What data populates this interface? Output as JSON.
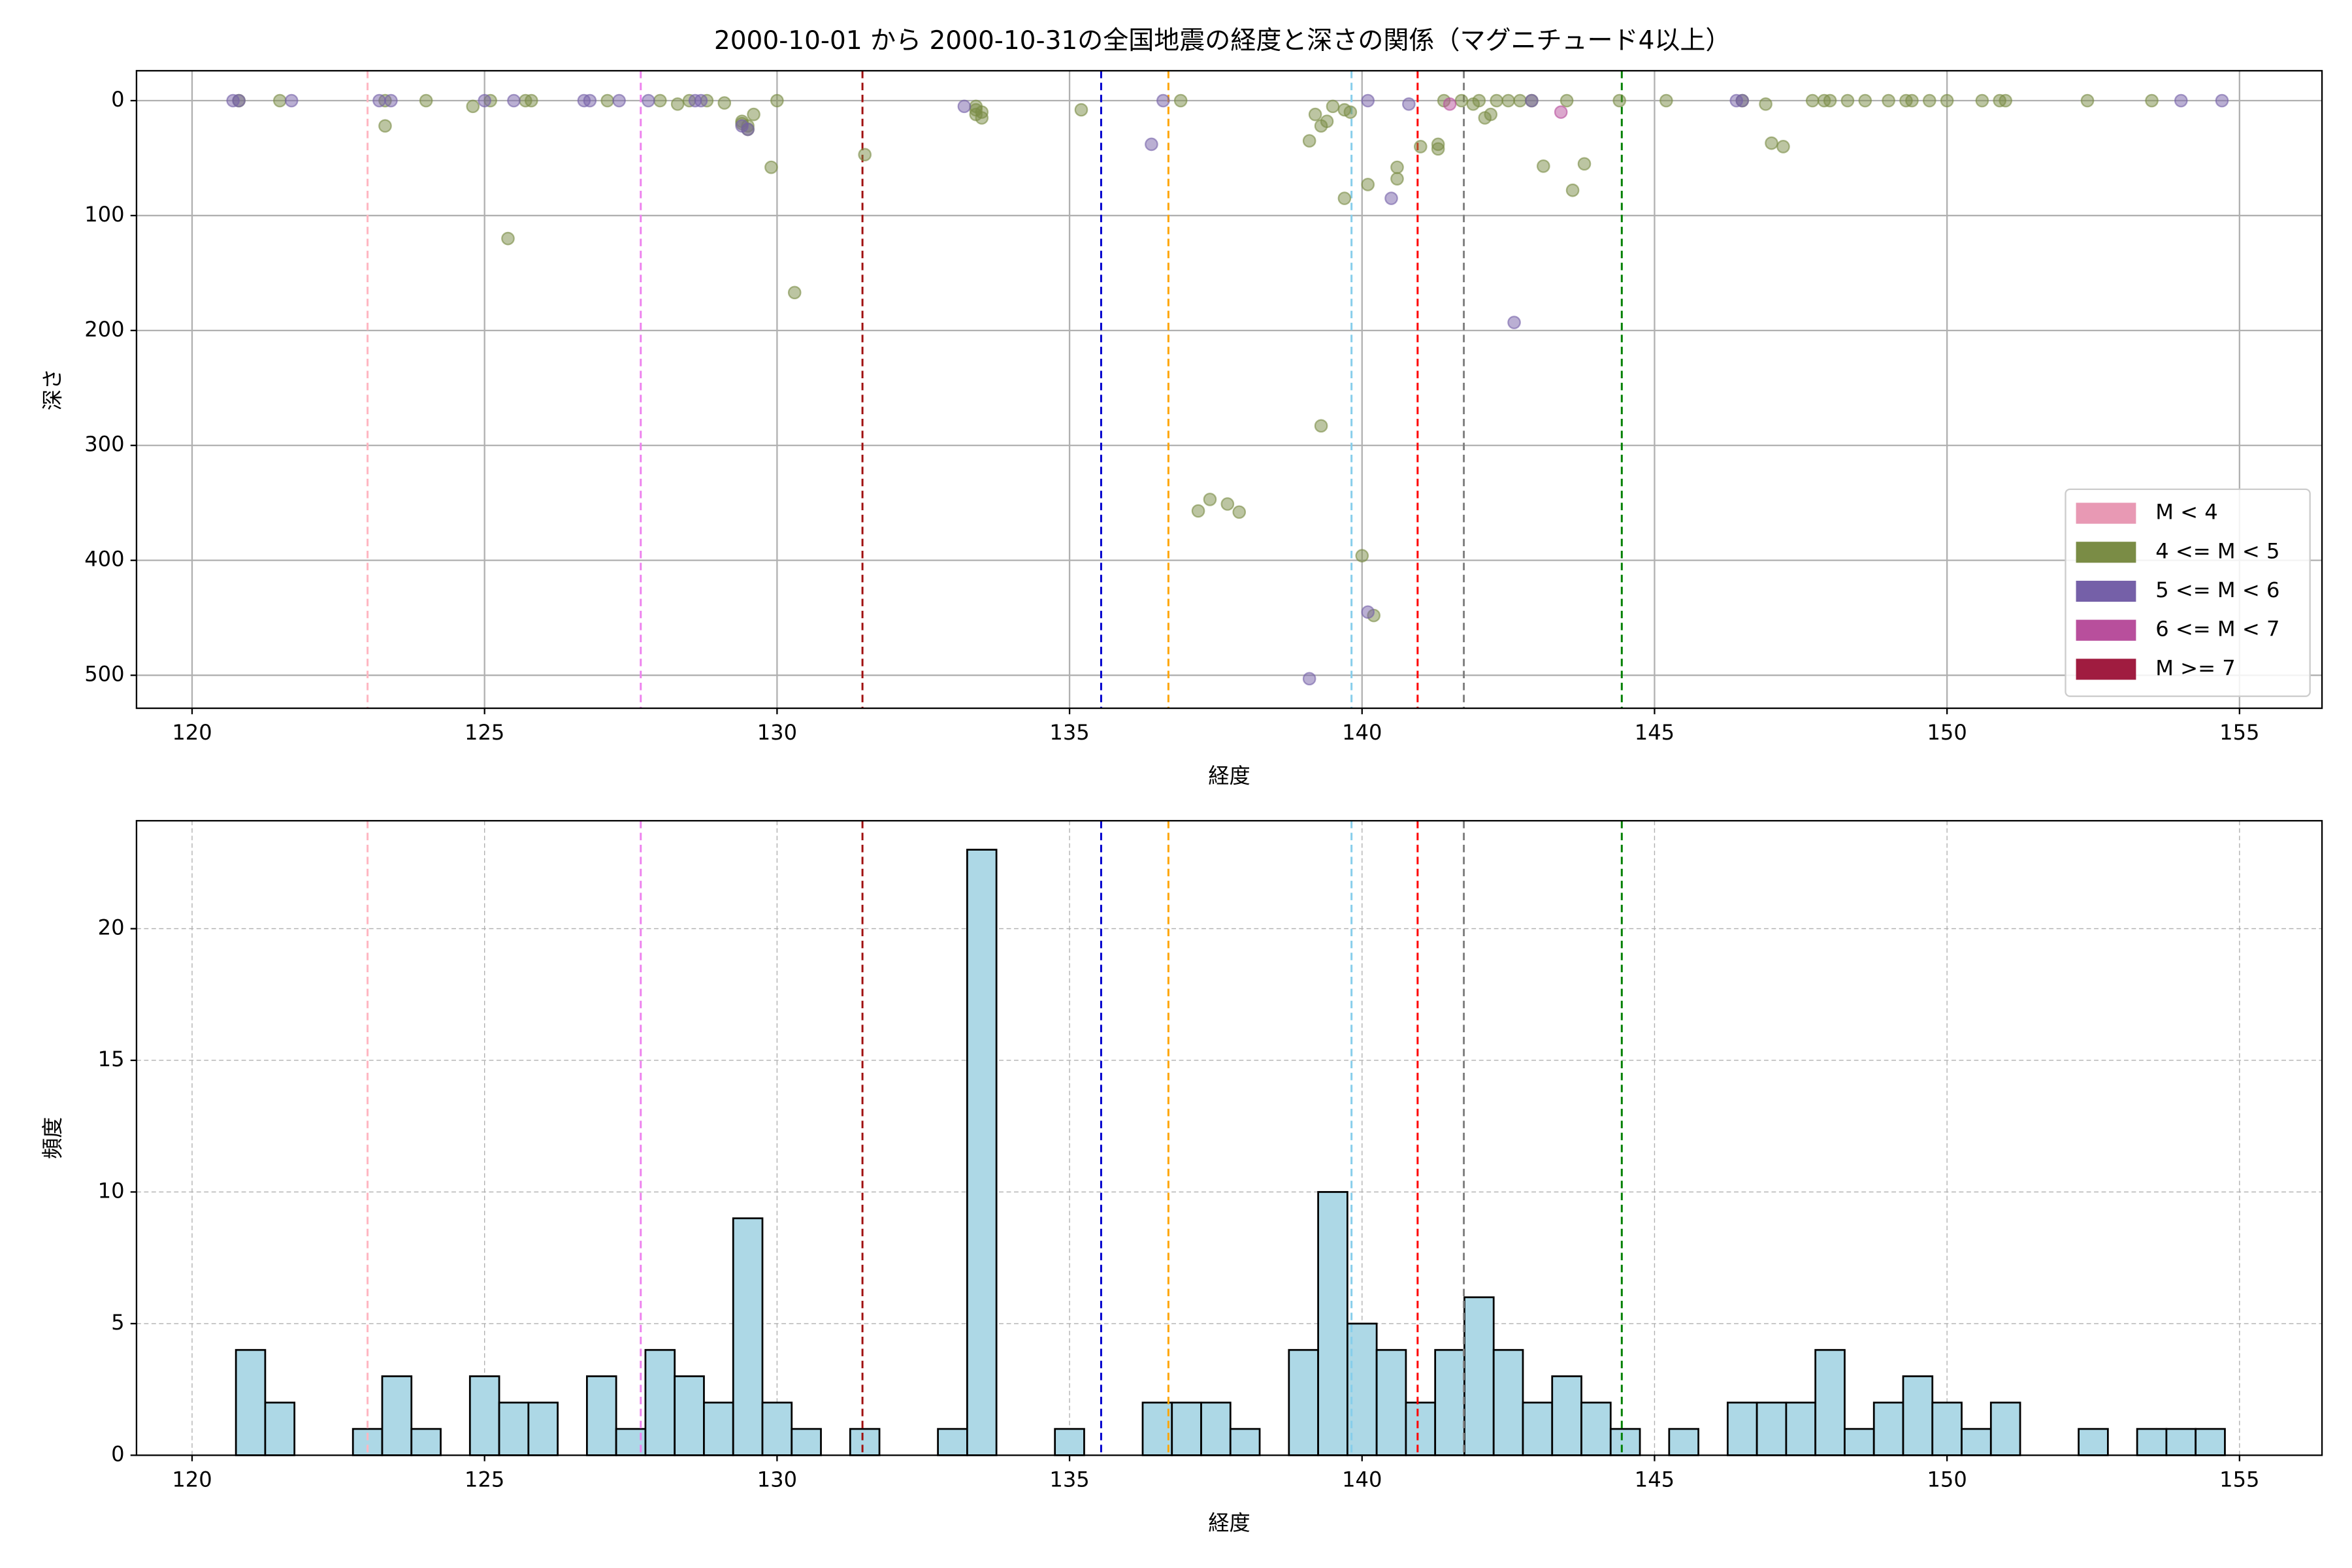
{
  "chart_data": [
    {
      "type": "scatter",
      "title": "2000-10-01 から 2000-10-31の全国地震の経度と深さの関係（マグニチュード4以上）",
      "xlabel": "経度",
      "ylabel": "深さ",
      "xlim": [
        119.05,
        156.41
      ],
      "ylim": [
        528.7,
        -26
      ],
      "xticks": [
        120,
        125,
        130,
        135,
        140,
        145,
        150,
        155
      ],
      "yticks": [
        0,
        100,
        200,
        300,
        400,
        500
      ],
      "grid": true,
      "legend": "lower right",
      "series": [
        {
          "name": "M < 4",
          "color": "#e899b4",
          "x": [],
          "y": []
        },
        {
          "name": "4 <= M < 5",
          "color": "#7a8c45",
          "x": [
            120.8,
            121.5,
            123.3,
            123.3,
            124.0,
            124.8,
            125.1,
            125.4,
            125.7,
            125.8,
            127.1,
            128.0,
            128.3,
            128.5,
            128.8,
            129.1,
            129.4,
            129.4,
            129.5,
            129.5,
            129.6,
            129.9,
            130.0,
            130.3,
            131.5,
            133.4,
            133.4,
            133.5,
            133.4,
            133.5,
            135.2,
            136.9,
            137.2,
            137.4,
            137.7,
            137.9,
            139.1,
            139.2,
            139.3,
            139.3,
            139.4,
            139.5,
            139.7,
            139.8,
            139.7,
            140.0,
            140.1,
            140.2,
            140.6,
            140.6,
            141.0,
            141.3,
            141.3,
            141.4,
            141.7,
            141.9,
            142.0,
            142.1,
            142.2,
            142.3,
            142.5,
            142.7,
            142.9,
            143.1,
            143.5,
            143.6,
            143.8,
            144.4,
            145.2,
            146.5,
            146.9,
            147.0,
            147.2,
            147.7,
            147.9,
            148.0,
            148.3,
            148.6,
            149.0,
            149.3,
            149.4,
            149.7,
            150.0,
            150.6,
            150.9,
            151.0,
            152.4,
            153.5
          ],
          "y": [
            0,
            0,
            0,
            22,
            0,
            5,
            0,
            120,
            0,
            0,
            0,
            0,
            3,
            0,
            0,
            2,
            18,
            20,
            25,
            22,
            12,
            58,
            0,
            167,
            47,
            8,
            12,
            15,
            5,
            10,
            8,
            0,
            357,
            347,
            351,
            358,
            35,
            12,
            283,
            22,
            18,
            5,
            8,
            10,
            85,
            396,
            73,
            448,
            68,
            58,
            40,
            42,
            38,
            0,
            0,
            3,
            0,
            15,
            12,
            0,
            0,
            0,
            0,
            57,
            0,
            78,
            55,
            0,
            0,
            0,
            3,
            37,
            40,
            0,
            0,
            0,
            0,
            0,
            0,
            0,
            0,
            0,
            0,
            0,
            0,
            0,
            0,
            0
          ]
        },
        {
          "name": "5 <= M < 6",
          "color": "#7560a8",
          "x": [
            120.7,
            120.8,
            121.7,
            123.2,
            123.4,
            125.0,
            125.5,
            126.7,
            126.8,
            127.3,
            127.8,
            128.6,
            128.7,
            129.4,
            129.5,
            133.2,
            136.4,
            136.6,
            139.1,
            140.1,
            140.1,
            140.5,
            140.8,
            142.6,
            142.9,
            146.4,
            146.5,
            154.0,
            154.7
          ],
          "y": [
            0,
            0,
            0,
            0,
            0,
            0,
            0,
            0,
            0,
            0,
            0,
            0,
            0,
            22,
            25,
            5,
            38,
            0,
            503,
            0,
            445,
            85,
            3,
            193,
            0,
            0,
            0,
            0,
            0
          ]
        },
        {
          "name": "6 <= M < 7",
          "color": "#b84f9c",
          "x": [
            141.5,
            143.4
          ],
          "y": [
            3,
            10
          ]
        },
        {
          "name": "M >= 7",
          "color": "#a01c40",
          "x": [],
          "y": []
        }
      ],
      "reference_lines": [
        {
          "x": 123.0,
          "color": "#ffb6c1"
        },
        {
          "x": 127.67,
          "color": "#ee82ee"
        },
        {
          "x": 131.46,
          "color": "#a01010"
        },
        {
          "x": 135.54,
          "color": "#0000cd"
        },
        {
          "x": 136.69,
          "color": "#ffa500"
        },
        {
          "x": 139.82,
          "color": "#87ceeb"
        },
        {
          "x": 140.95,
          "color": "#ff0000"
        },
        {
          "x": 141.74,
          "color": "#808080"
        },
        {
          "x": 144.44,
          "color": "#008000"
        }
      ]
    },
    {
      "type": "histogram",
      "xlabel": "経度",
      "ylabel": "頻度",
      "xlim": [
        119.05,
        156.41
      ],
      "ylim": [
        0,
        24.1
      ],
      "xticks": [
        120,
        125,
        130,
        135,
        140,
        145,
        150,
        155
      ],
      "yticks": [
        0,
        5,
        10,
        15,
        20
      ],
      "grid": true,
      "color": "#add8e6",
      "bins": [
        120.75,
        121.25,
        121.75,
        122.25,
        122.75,
        123.25,
        123.75,
        124.25,
        124.75,
        125.25,
        125.75,
        126.25,
        126.75,
        127.25,
        127.75,
        128.25,
        128.75,
        129.25,
        129.75,
        130.25,
        130.75,
        131.25,
        131.75,
        132.25,
        132.75,
        133.25,
        133.75,
        134.25,
        134.75,
        135.25,
        135.75,
        136.25,
        136.75,
        137.25,
        137.75,
        138.25,
        138.75,
        139.25,
        139.75,
        140.25,
        140.75,
        141.25,
        141.75,
        142.25,
        142.75,
        143.25,
        143.75,
        144.25,
        144.75,
        145.25,
        145.75,
        146.25,
        146.75,
        147.25,
        147.75,
        148.25,
        148.75,
        149.25,
        149.75,
        150.25,
        150.75,
        151.25,
        151.75,
        152.25,
        152.75,
        153.25,
        153.75,
        154.25,
        154.75
      ],
      "counts": [
        4,
        2,
        0,
        0,
        1,
        3,
        1,
        0,
        3,
        2,
        2,
        0,
        3,
        1,
        4,
        3,
        2,
        9,
        2,
        1,
        0,
        1,
        0,
        0,
        1,
        23,
        0,
        0,
        1,
        0,
        0,
        2,
        2,
        2,
        1,
        0,
        4,
        10,
        5,
        4,
        2,
        4,
        6,
        4,
        2,
        3,
        2,
        1,
        0,
        1,
        0,
        2,
        2,
        2,
        4,
        1,
        2,
        3,
        2,
        1,
        2,
        0,
        0,
        1,
        0,
        1,
        1,
        1
      ],
      "reference_lines": [
        {
          "x": 123.0,
          "color": "#ffb6c1"
        },
        {
          "x": 127.67,
          "color": "#ee82ee"
        },
        {
          "x": 131.46,
          "color": "#a01010"
        },
        {
          "x": 135.54,
          "color": "#0000cd"
        },
        {
          "x": 136.69,
          "color": "#ffa500"
        },
        {
          "x": 139.82,
          "color": "#87ceeb"
        },
        {
          "x": 140.95,
          "color": "#ff0000"
        },
        {
          "x": 141.74,
          "color": "#808080"
        },
        {
          "x": 144.44,
          "color": "#008000"
        }
      ]
    }
  ]
}
